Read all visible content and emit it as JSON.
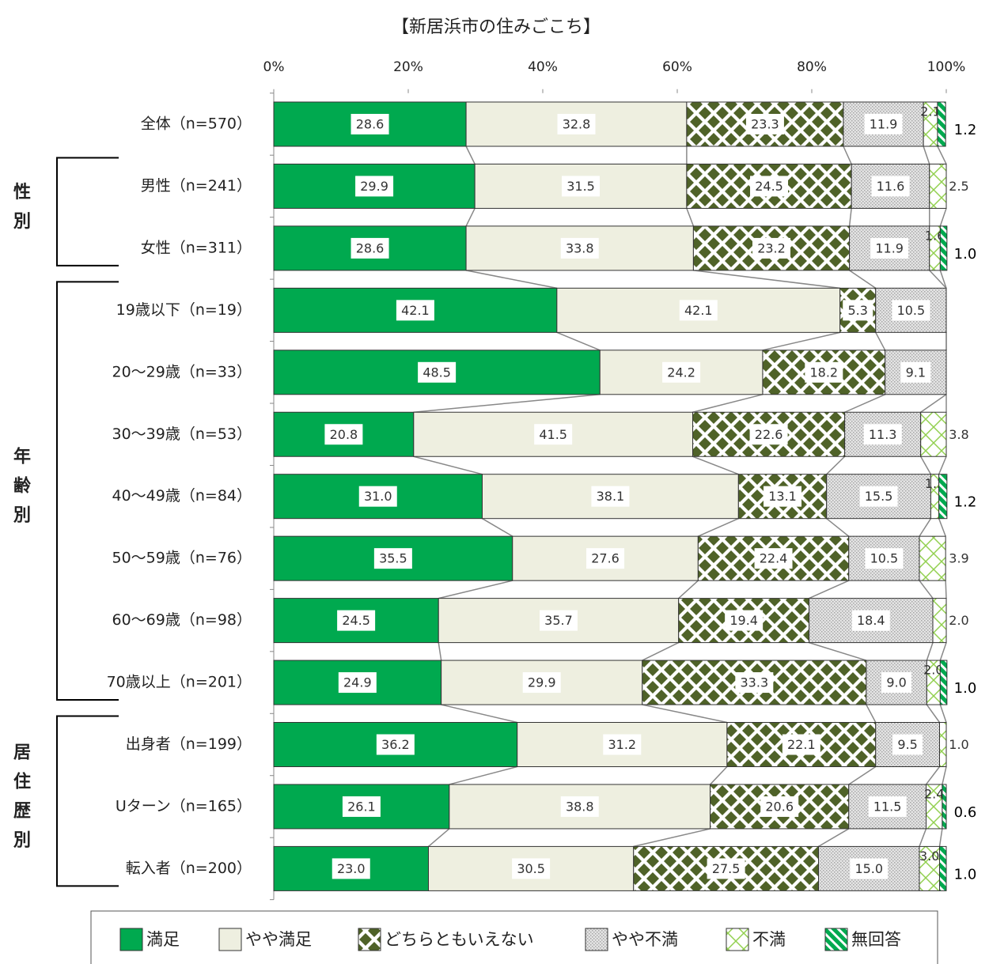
{
  "chart_data": {
    "type": "stacked_bar_horizontal",
    "title": "【新居浜市の住みごこち】",
    "categories": [
      "全体（n=570）",
      "男性（n=241）",
      "女性（n=311）",
      "19歳以下（n=19）",
      "20～29歳（n=33）",
      "30～39歳（n=53）",
      "40～49歳（n=84）",
      "50～59歳（n=76）",
      "60～69歳（n=98）",
      "70歳以上（n=201）",
      "出身者（n=199）",
      "Uターン（n=165）",
      "転入者（n=200）"
    ],
    "groups": [
      "性別",
      "年齢別",
      "居住歴別"
    ],
    "xlim": [
      0,
      100
    ],
    "xticks": [
      {
        "value": 0,
        "label": "0%"
      },
      {
        "value": 20,
        "label": "20%"
      },
      {
        "value": 40,
        "label": "40%"
      },
      {
        "value": 60,
        "label": "60%"
      },
      {
        "value": 80,
        "label": "80%"
      },
      {
        "value": 100,
        "label": "100%"
      }
    ],
    "legend": "bottom",
    "series": [
      {
        "name": "満足",
        "color": "#00a94f",
        "pattern": "solid",
        "values": [
          28.6,
          29.9,
          28.6,
          42.1,
          48.5,
          20.8,
          31.0,
          35.5,
          24.5,
          24.9,
          36.2,
          26.1,
          23.0
        ],
        "value_labels": [
          "28.6",
          "29.9",
          "28.6",
          "42.1",
          "48.5",
          "20.8",
          "31.0",
          "35.5",
          "24.5",
          "24.9",
          "36.2",
          "26.1",
          "23.0"
        ]
      },
      {
        "name": "やや満足",
        "color": "#eeefe0",
        "pattern": "solid",
        "values": [
          32.8,
          31.5,
          33.8,
          42.1,
          24.2,
          41.5,
          38.1,
          27.6,
          35.7,
          29.9,
          31.2,
          38.8,
          30.5
        ],
        "value_labels": [
          "32.8",
          "31.5",
          "33.8",
          "42.1",
          "24.2",
          "41.5",
          "38.1",
          "27.6",
          "35.7",
          "29.9",
          "31.2",
          "38.8",
          "30.5"
        ]
      },
      {
        "name": "どちらともいえない",
        "color": "#4f6228",
        "pattern": "diamond",
        "values": [
          23.3,
          24.5,
          23.2,
          5.3,
          18.2,
          22.6,
          13.1,
          22.4,
          19.4,
          33.3,
          22.1,
          20.6,
          27.5
        ],
        "value_labels": [
          "23.3",
          "24.5",
          "23.2",
          "5.3",
          "18.2",
          "22.6",
          "13.1",
          "22.4",
          "19.4",
          "33.3",
          "22.1",
          "20.6",
          "27.5"
        ]
      },
      {
        "name": "やや不満",
        "color": "#a6a6a6",
        "pattern": "dots",
        "values": [
          11.9,
          11.6,
          11.9,
          10.5,
          9.1,
          11.3,
          15.5,
          10.5,
          18.4,
          9.0,
          9.5,
          11.5,
          15.0
        ],
        "value_labels": [
          "11.9",
          "11.6",
          "11.9",
          "10.5",
          "9.1",
          "11.3",
          "15.5",
          "10.5",
          "18.4",
          "9.0",
          "9.5",
          "11.5",
          "15.0"
        ]
      },
      {
        "name": "不満",
        "color": "#92d050",
        "pattern": "cross",
        "values": [
          2.1,
          2.5,
          1.6,
          null,
          null,
          3.8,
          1.2,
          3.9,
          2.0,
          2.0,
          1.0,
          2.4,
          3.0
        ],
        "value_labels": [
          "2.1",
          "2.5",
          "1.6",
          null,
          null,
          "3.8",
          "1.2",
          "3.9",
          "2.0",
          "2.0",
          "1.0",
          "2.4",
          "3.0"
        ]
      },
      {
        "name": "無回答",
        "color": "#00a94f",
        "pattern": "stripes",
        "values": [
          1.2,
          null,
          1.0,
          null,
          null,
          null,
          1.2,
          null,
          null,
          1.0,
          null,
          0.6,
          1.0
        ],
        "value_labels": [
          "1.2",
          null,
          "1.0",
          null,
          null,
          null,
          "1.2",
          null,
          null,
          "1.0",
          null,
          "0.6",
          "1.0"
        ]
      }
    ]
  }
}
